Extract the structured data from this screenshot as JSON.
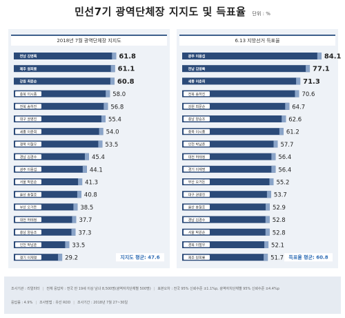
{
  "title": "민선7기 광역단체장 지지도 및 득표율",
  "unit": "단위 : %",
  "chart_data": [
    {
      "type": "bar",
      "orientation": "horizontal",
      "title": "2018년 7월 광역단체장 지지도",
      "categories": [
        "전남 김영록",
        "제주 원희룡",
        "강원 최문순",
        "충북 이시종",
        "전북 송하진",
        "대구 권영진",
        "세종 이춘희",
        "경북 이철우",
        "경남 김경수",
        "광주 이용섭",
        "서울 박원순",
        "울산 송철호",
        "부산 오거돈",
        "대전 허태정",
        "충남 양승조",
        "인천 박남춘",
        "경기 이재명"
      ],
      "values": [
        61.8,
        61.1,
        60.8,
        58.0,
        56.8,
        55.4,
        54.0,
        53.5,
        45.4,
        44.1,
        41.3,
        40.8,
        38.5,
        37.7,
        37.3,
        33.5,
        29.2
      ],
      "value_labels": [
        "61.8",
        "61.1",
        "60.8",
        "58.0",
        "56.8",
        "55.4",
        "54.0",
        "53.5",
        "45.4",
        "44.1",
        "41.3",
        "40.8",
        "38.5",
        "37.7",
        "37.3",
        "33.5",
        "29.2"
      ],
      "average_label": "지지도 평균: 47.6",
      "average": 47.6,
      "xlim": [
        0,
        100
      ],
      "highlight_count": 3,
      "grid": false
    },
    {
      "type": "bar",
      "orientation": "horizontal",
      "title": "6.13 지방선거 득표율",
      "categories": [
        "광주 이용섭",
        "전남 김영록",
        "세종 이춘희",
        "전북 송하진",
        "강원 최문순",
        "충남 양승조",
        "충북 이시종",
        "인천 박남춘",
        "대전 허태정",
        "경기 이재명",
        "부산 오거돈",
        "대구 권영진",
        "울산 송철호",
        "경남 김경수",
        "서울 박원순",
        "경북 이철우",
        "제주 원희룡"
      ],
      "values": [
        84.1,
        77.1,
        71.3,
        70.6,
        64.7,
        62.6,
        61.2,
        57.7,
        56.4,
        56.4,
        55.2,
        53.7,
        52.9,
        52.8,
        52.8,
        52.1,
        51.7
      ],
      "value_labels": [
        "84.1",
        "77.1",
        "71.3",
        "70.6",
        "64.7",
        "62.6",
        "61.2",
        "57.7",
        "56.4",
        "56.4",
        "55.2",
        "53.7",
        "52.9",
        "52.8",
        "52.8",
        "52.1",
        "51.7"
      ],
      "average_label": "득표율 평균: 60.8",
      "average": 60.8,
      "xlim": [
        0,
        100
      ],
      "highlight_count": 3,
      "grid": false
    }
  ],
  "footer": {
    "line1": [
      "조사기관 : 리얼미터",
      "전체 응답자 : 전국 만 19세 이상 남녀 8,500명(광역자치단체별 500명)",
      "표본오차 : 전국 95% 신뢰수준 ±1.1%p, 광역자치단체별 95% 신뢰수준 ±4.4%p"
    ],
    "line2": [
      "응답률 : 4.9%",
      "조사방법 : 유선 RDD",
      "조사기간 : 2018년 7월 27~30일"
    ]
  },
  "colors": {
    "bar_dark": "#2b4a78",
    "bar_light": "#8aa4c8",
    "highlight_label": "#ffffff",
    "label_box_bg": "#ffffff",
    "average_text": "#2f6db5",
    "header_rule": "#3d5f8c"
  }
}
